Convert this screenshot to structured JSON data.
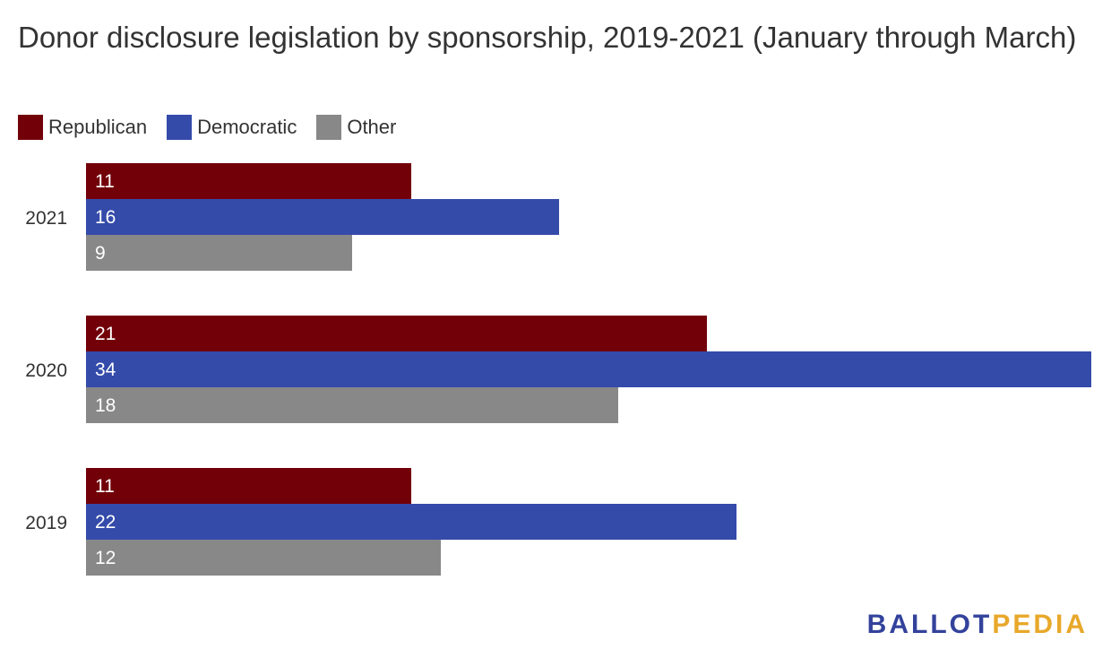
{
  "chart_data": {
    "type": "bar",
    "orientation": "horizontal",
    "title": "Donor disclosure legislation by sponsorship, 2019-2021 (January through March)",
    "categories": [
      "2021",
      "2020",
      "2019"
    ],
    "series": [
      {
        "name": "Republican",
        "color": "#720009",
        "values": [
          11,
          21,
          11
        ]
      },
      {
        "name": "Democratic",
        "color": "#344baa",
        "values": [
          16,
          34,
          22
        ]
      },
      {
        "name": "Other",
        "color": "#888888",
        "values": [
          9,
          18,
          12
        ]
      }
    ],
    "xlim": [
      0,
      34
    ],
    "grid": false,
    "legend_position": "top-left"
  },
  "logo": {
    "part1": "BALLOT",
    "part2": "PEDIA"
  }
}
